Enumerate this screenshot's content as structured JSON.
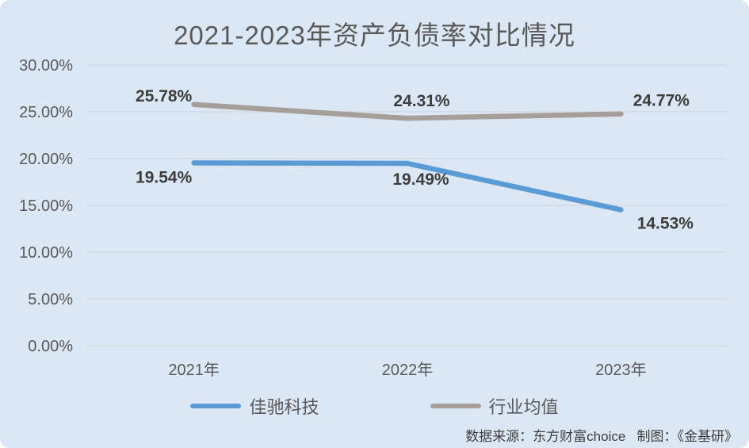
{
  "title": "2021-2023年资产负债率对比情况",
  "chart_data": {
    "type": "line",
    "title": "2021-2023年资产负债率对比情况",
    "categories": [
      "2021年",
      "2022年",
      "2023年"
    ],
    "series": [
      {
        "name": "佳驰科技",
        "color": "#5b9bd5",
        "values": [
          19.54,
          19.49,
          14.53
        ],
        "labels": [
          "19.54%",
          "19.49%",
          "14.53%"
        ],
        "label_offsets": [
          {
            "dx": -38,
            "dy": 25
          },
          {
            "dx": 17,
            "dy": 27
          },
          {
            "dx": 56,
            "dy": 24
          }
        ]
      },
      {
        "name": "行业均值",
        "color": "#a69e98",
        "values": [
          25.78,
          24.31,
          24.77
        ],
        "labels": [
          "25.78%",
          "24.31%",
          "24.77%"
        ],
        "label_offsets": [
          {
            "dx": -38,
            "dy": -4
          },
          {
            "dx": 18,
            "dy": -15
          },
          {
            "dx": 51,
            "dy": -10
          }
        ]
      }
    ],
    "yticks": [
      "30.00%",
      "25.00%",
      "20.00%",
      "15.00%",
      "10.00%",
      "5.00%",
      "0.00%"
    ],
    "ylim": [
      0,
      30
    ],
    "grid": true,
    "legend_position": "bottom",
    "xlabel": "",
    "ylabel": ""
  },
  "footer": {
    "text": "数据来源：东方财富choice   制图：《金基研》"
  },
  "colors": {
    "background": "#dbe7f4",
    "gridline": "#d6dade",
    "axis_text": "#595959",
    "data_label_text": "#3d3d3d",
    "title_text": "#595959"
  }
}
